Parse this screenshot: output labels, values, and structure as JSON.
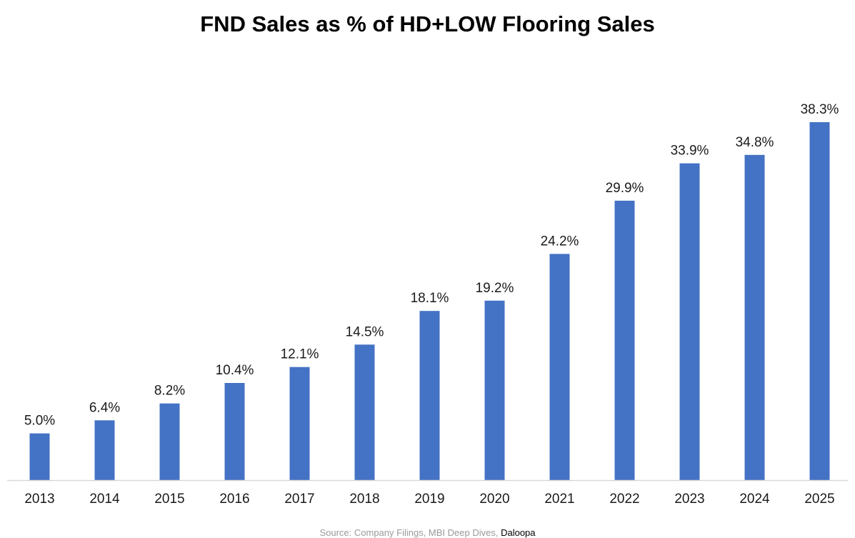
{
  "chart_data": {
    "type": "bar",
    "title": "FND Sales as % of HD+LOW Flooring Sales",
    "xlabel": "",
    "ylabel": "",
    "categories": [
      "2013",
      "2014",
      "2015",
      "2016",
      "2017",
      "2018",
      "2019",
      "2020",
      "2021",
      "2022",
      "2023",
      "2024",
      "2025"
    ],
    "values": [
      5.0,
      6.4,
      8.2,
      10.4,
      12.1,
      14.5,
      18.1,
      19.2,
      24.2,
      29.9,
      33.9,
      34.8,
      38.3
    ],
    "data_labels": [
      "5.0%",
      "6.4%",
      "8.2%",
      "10.4%",
      "12.1%",
      "14.5%",
      "18.1%",
      "19.2%",
      "24.2%",
      "29.9%",
      "33.9%",
      "34.8%",
      "38.3%"
    ],
    "ylim": [
      0,
      38.3
    ],
    "grid": false,
    "legend": "none"
  },
  "source": {
    "text": "Source: Company Filings, MBI Deep Dives, ",
    "brand": "Daloopa"
  },
  "colors": {
    "bar": "#4472C4",
    "axis": "#d9d9d9"
  }
}
